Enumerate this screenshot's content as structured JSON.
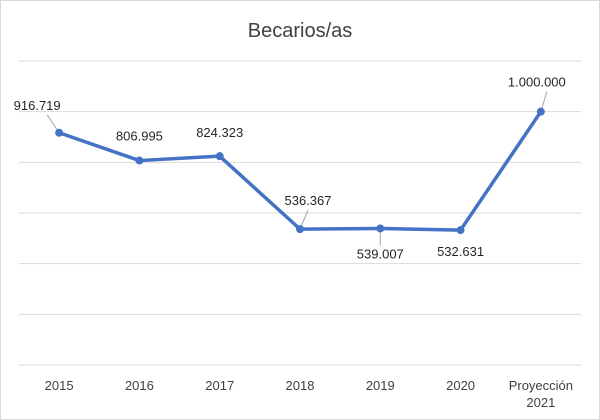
{
  "chart_data": {
    "type": "line",
    "title": "Becarios/as",
    "xlabel": "",
    "ylabel": "",
    "categories": [
      "2015",
      "2016",
      "2017",
      "2018",
      "2019",
      "2020",
      "Proyección\n2021"
    ],
    "series": [
      {
        "values": [
          916719,
          806995,
          824323,
          536367,
          539007,
          532631,
          1000000
        ],
        "labels": [
          "916.719",
          "806.995",
          "824.323",
          "536.367",
          "539.007",
          "532.631",
          "1.000.000"
        ],
        "color": "#4472c4"
      }
    ],
    "ylim": [
      0,
      1200000
    ],
    "ystep": 200000,
    "y_tick_labels_shown": false,
    "grid": true,
    "legend": "none"
  }
}
